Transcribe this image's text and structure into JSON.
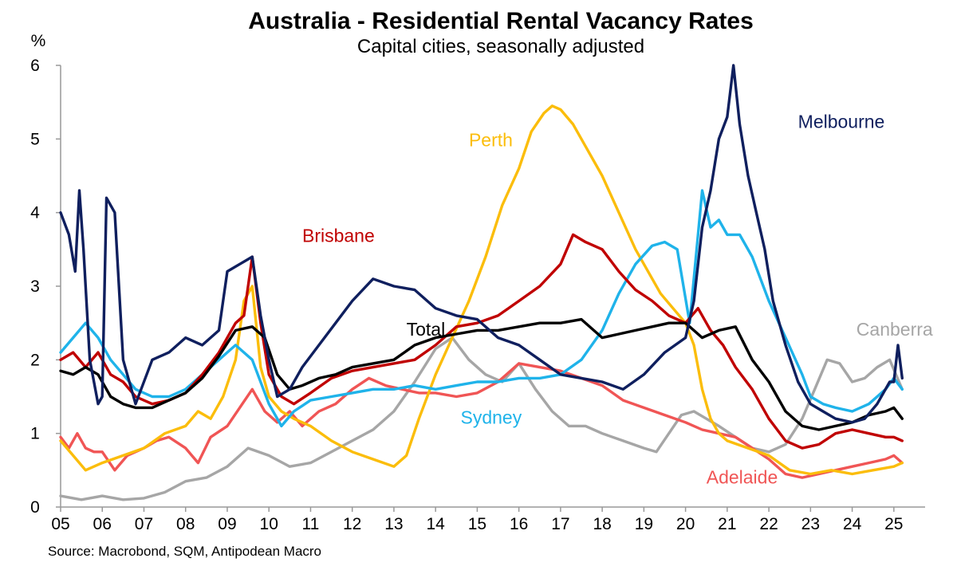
{
  "chart_data": {
    "type": "line",
    "title": "Australia - Residential Rental Vacancy Rates",
    "subtitle": "Capital cities, seasonally adjusted",
    "ylabel": "%",
    "source": "Source: Macrobond, SQM, Antipodean Macro",
    "xlim": [
      2005,
      2025.75
    ],
    "ylim": [
      0,
      6
    ],
    "yticks": [
      0,
      1,
      2,
      3,
      4,
      5,
      6
    ],
    "xticks": [
      2005,
      2006,
      2007,
      2008,
      2009,
      2010,
      2011,
      2012,
      2013,
      2014,
      2015,
      2016,
      2017,
      2018,
      2019,
      2020,
      2021,
      2022,
      2023,
      2024,
      2025
    ],
    "xtick_labels": [
      "05",
      "06",
      "07",
      "08",
      "09",
      "10",
      "11",
      "12",
      "13",
      "14",
      "15",
      "16",
      "17",
      "18",
      "19",
      "20",
      "21",
      "22",
      "23",
      "24",
      "25"
    ],
    "grid": false,
    "series": [
      {
        "name": "Canberra",
        "color": "#a6a6a6",
        "x": [
          2005.0,
          2005.5,
          2006.0,
          2006.5,
          2007.0,
          2007.5,
          2008.0,
          2008.5,
          2009.0,
          2009.5,
          2010.0,
          2010.5,
          2011.0,
          2011.5,
          2012.0,
          2012.5,
          2013.0,
          2013.5,
          2014.0,
          2014.4,
          2014.8,
          2015.2,
          2015.6,
          2016.0,
          2016.4,
          2016.8,
          2017.2,
          2017.6,
          2018.0,
          2018.5,
          2019.0,
          2019.3,
          2019.6,
          2019.9,
          2020.2,
          2020.5,
          2020.8,
          2021.2,
          2021.6,
          2022.0,
          2022.4,
          2022.8,
          2023.1,
          2023.4,
          2023.7,
          2024.0,
          2024.3,
          2024.6,
          2024.9,
          2025.2
        ],
        "y": [
          0.15,
          0.1,
          0.15,
          0.1,
          0.12,
          0.2,
          0.35,
          0.4,
          0.55,
          0.8,
          0.7,
          0.55,
          0.6,
          0.75,
          0.9,
          1.05,
          1.3,
          1.7,
          2.15,
          2.3,
          2.0,
          1.8,
          1.7,
          1.95,
          1.6,
          1.3,
          1.1,
          1.1,
          1.0,
          0.9,
          0.8,
          0.75,
          1.0,
          1.25,
          1.3,
          1.2,
          1.1,
          0.95,
          0.8,
          0.75,
          0.85,
          1.2,
          1.6,
          2.0,
          1.95,
          1.7,
          1.75,
          1.9,
          2.0,
          1.6
        ]
      },
      {
        "name": "Adelaide",
        "color": "#f05555",
        "x": [
          2005.0,
          2005.2,
          2005.4,
          2005.6,
          2005.8,
          2006.0,
          2006.3,
          2006.6,
          2007.0,
          2007.3,
          2007.6,
          2008.0,
          2008.3,
          2008.6,
          2009.0,
          2009.3,
          2009.6,
          2009.9,
          2010.2,
          2010.5,
          2010.8,
          2011.2,
          2011.6,
          2012.0,
          2012.4,
          2012.8,
          2013.2,
          2013.6,
          2014.0,
          2014.5,
          2015.0,
          2015.5,
          2016.0,
          2016.5,
          2017.0,
          2017.5,
          2018.0,
          2018.5,
          2019.0,
          2019.5,
          2020.0,
          2020.4,
          2020.8,
          2021.2,
          2021.6,
          2022.0,
          2022.4,
          2022.8,
          2023.2,
          2023.6,
          2024.0,
          2024.4,
          2024.8,
          2025.0,
          2025.2
        ],
        "y": [
          0.95,
          0.8,
          1.0,
          0.8,
          0.75,
          0.75,
          0.5,
          0.7,
          0.8,
          0.9,
          0.95,
          0.8,
          0.6,
          0.95,
          1.1,
          1.35,
          1.6,
          1.3,
          1.15,
          1.3,
          1.1,
          1.3,
          1.4,
          1.6,
          1.75,
          1.65,
          1.6,
          1.55,
          1.55,
          1.5,
          1.55,
          1.7,
          1.95,
          1.9,
          1.85,
          1.75,
          1.65,
          1.45,
          1.35,
          1.25,
          1.15,
          1.05,
          1.0,
          0.95,
          0.8,
          0.65,
          0.45,
          0.4,
          0.45,
          0.5,
          0.55,
          0.6,
          0.65,
          0.7,
          0.6
        ]
      },
      {
        "name": "Perth",
        "color": "#fbbd0b",
        "x": [
          2005.0,
          2005.3,
          2005.6,
          2006.0,
          2006.5,
          2007.0,
          2007.5,
          2008.0,
          2008.3,
          2008.6,
          2008.9,
          2009.2,
          2009.4,
          2009.6,
          2009.8,
          2010.0,
          2010.3,
          2010.6,
          2011.0,
          2011.5,
          2012.0,
          2012.5,
          2013.0,
          2013.3,
          2013.6,
          2014.0,
          2014.4,
          2014.8,
          2015.2,
          2015.6,
          2016.0,
          2016.3,
          2016.6,
          2016.8,
          2017.0,
          2017.3,
          2017.6,
          2018.0,
          2018.4,
          2018.8,
          2019.0,
          2019.4,
          2019.7,
          2020.0,
          2020.2,
          2020.4,
          2020.6,
          2020.8,
          2021.0,
          2021.5,
          2022.0,
          2022.5,
          2023.0,
          2023.5,
          2024.0,
          2024.5,
          2025.0,
          2025.2
        ],
        "y": [
          0.9,
          0.7,
          0.5,
          0.6,
          0.7,
          0.8,
          1.0,
          1.1,
          1.3,
          1.2,
          1.5,
          2.0,
          2.8,
          3.0,
          1.9,
          1.5,
          1.3,
          1.2,
          1.1,
          0.9,
          0.75,
          0.65,
          0.55,
          0.7,
          1.2,
          1.8,
          2.3,
          2.8,
          3.4,
          4.1,
          4.6,
          5.1,
          5.35,
          5.45,
          5.4,
          5.2,
          4.9,
          4.5,
          4.0,
          3.5,
          3.3,
          2.9,
          2.7,
          2.5,
          2.2,
          1.6,
          1.2,
          1.0,
          0.9,
          0.8,
          0.7,
          0.5,
          0.45,
          0.5,
          0.45,
          0.5,
          0.55,
          0.6
        ]
      },
      {
        "name": "Sydney",
        "color": "#1fb3ea",
        "x": [
          2005.0,
          2005.3,
          2005.6,
          2005.9,
          2006.2,
          2006.5,
          2006.8,
          2007.2,
          2007.6,
          2008.0,
          2008.4,
          2008.8,
          2009.2,
          2009.6,
          2010.0,
          2010.3,
          2010.6,
          2011.0,
          2011.5,
          2012.0,
          2012.5,
          2013.0,
          2013.5,
          2014.0,
          2014.5,
          2015.0,
          2015.5,
          2016.0,
          2016.5,
          2017.0,
          2017.5,
          2018.0,
          2018.4,
          2018.8,
          2019.2,
          2019.5,
          2019.8,
          2020.1,
          2020.4,
          2020.6,
          2020.8,
          2021.0,
          2021.3,
          2021.6,
          2022.0,
          2022.4,
          2022.8,
          2023.0,
          2023.3,
          2023.6,
          2024.0,
          2024.4,
          2024.8,
          2025.0,
          2025.2
        ],
        "y": [
          2.1,
          2.3,
          2.5,
          2.3,
          2.0,
          1.8,
          1.6,
          1.5,
          1.5,
          1.6,
          1.8,
          2.0,
          2.2,
          2.0,
          1.4,
          1.1,
          1.3,
          1.45,
          1.5,
          1.55,
          1.6,
          1.6,
          1.65,
          1.6,
          1.65,
          1.7,
          1.7,
          1.75,
          1.75,
          1.8,
          2.0,
          2.4,
          2.9,
          3.3,
          3.55,
          3.6,
          3.5,
          2.5,
          4.3,
          3.8,
          3.9,
          3.7,
          3.7,
          3.4,
          2.8,
          2.3,
          1.8,
          1.5,
          1.4,
          1.35,
          1.3,
          1.4,
          1.6,
          1.75,
          1.6
        ]
      },
      {
        "name": "Brisbane",
        "color": "#c00000",
        "x": [
          2005.0,
          2005.3,
          2005.6,
          2005.9,
          2006.2,
          2006.5,
          2006.8,
          2007.2,
          2007.6,
          2008.0,
          2008.4,
          2008.8,
          2009.2,
          2009.4,
          2009.6,
          2009.8,
          2010.0,
          2010.3,
          2010.6,
          2011.0,
          2011.5,
          2012.0,
          2012.5,
          2013.0,
          2013.5,
          2014.0,
          2014.5,
          2015.0,
          2015.5,
          2016.0,
          2016.5,
          2017.0,
          2017.3,
          2017.6,
          2018.0,
          2018.4,
          2018.8,
          2019.2,
          2019.6,
          2020.0,
          2020.3,
          2020.6,
          2020.9,
          2021.2,
          2021.6,
          2022.0,
          2022.4,
          2022.8,
          2023.2,
          2023.6,
          2024.0,
          2024.4,
          2024.8,
          2025.0,
          2025.2
        ],
        "y": [
          2.0,
          2.1,
          1.9,
          2.1,
          1.8,
          1.7,
          1.5,
          1.4,
          1.45,
          1.55,
          1.8,
          2.1,
          2.5,
          2.6,
          3.4,
          2.5,
          1.8,
          1.5,
          1.4,
          1.55,
          1.75,
          1.85,
          1.9,
          1.95,
          2.0,
          2.2,
          2.45,
          2.5,
          2.6,
          2.8,
          3.0,
          3.3,
          3.7,
          3.6,
          3.5,
          3.2,
          2.95,
          2.8,
          2.6,
          2.5,
          2.7,
          2.4,
          2.2,
          1.9,
          1.6,
          1.2,
          0.9,
          0.8,
          0.85,
          1.0,
          1.05,
          1.0,
          0.95,
          0.95,
          0.9
        ]
      },
      {
        "name": "Total",
        "color": "#000000",
        "x": [
          2005.0,
          2005.3,
          2005.6,
          2005.9,
          2006.2,
          2006.5,
          2006.8,
          2007.2,
          2007.6,
          2008.0,
          2008.4,
          2008.8,
          2009.2,
          2009.6,
          2009.9,
          2010.2,
          2010.5,
          2010.8,
          2011.2,
          2011.6,
          2012.0,
          2012.5,
          2013.0,
          2013.5,
          2014.0,
          2014.5,
          2015.0,
          2015.5,
          2016.0,
          2016.5,
          2017.0,
          2017.5,
          2018.0,
          2018.4,
          2018.8,
          2019.2,
          2019.6,
          2020.0,
          2020.4,
          2020.8,
          2021.2,
          2021.6,
          2022.0,
          2022.4,
          2022.8,
          2023.2,
          2023.6,
          2024.0,
          2024.4,
          2024.8,
          2025.0,
          2025.2
        ],
        "y": [
          1.85,
          1.8,
          1.9,
          1.8,
          1.5,
          1.4,
          1.35,
          1.35,
          1.45,
          1.55,
          1.75,
          2.05,
          2.4,
          2.45,
          2.3,
          1.8,
          1.6,
          1.65,
          1.75,
          1.8,
          1.9,
          1.95,
          2.0,
          2.2,
          2.3,
          2.35,
          2.4,
          2.4,
          2.45,
          2.5,
          2.5,
          2.55,
          2.3,
          2.35,
          2.4,
          2.45,
          2.5,
          2.5,
          2.3,
          2.4,
          2.45,
          2.0,
          1.7,
          1.3,
          1.1,
          1.05,
          1.1,
          1.15,
          1.25,
          1.3,
          1.35,
          1.2
        ]
      },
      {
        "name": "Melbourne",
        "color": "#0f1f5e",
        "x": [
          2005.0,
          2005.2,
          2005.35,
          2005.45,
          2005.55,
          2005.7,
          2005.9,
          2006.0,
          2006.1,
          2006.3,
          2006.5,
          2006.8,
          2007.2,
          2007.6,
          2008.0,
          2008.4,
          2008.8,
          2009.0,
          2009.3,
          2009.6,
          2009.8,
          2010.0,
          2010.2,
          2010.5,
          2010.8,
          2011.2,
          2011.6,
          2012.0,
          2012.5,
          2013.0,
          2013.5,
          2014.0,
          2014.5,
          2015.0,
          2015.5,
          2016.0,
          2016.5,
          2017.0,
          2017.5,
          2018.0,
          2018.5,
          2019.0,
          2019.5,
          2020.0,
          2020.2,
          2020.4,
          2020.6,
          2020.8,
          2021.0,
          2021.15,
          2021.3,
          2021.5,
          2021.7,
          2021.9,
          2022.1,
          2022.4,
          2022.7,
          2023.0,
          2023.3,
          2023.6,
          2024.0,
          2024.3,
          2024.6,
          2024.9,
          2025.0,
          2025.1,
          2025.2
        ],
        "y": [
          4.0,
          3.7,
          3.2,
          4.3,
          3.5,
          2.0,
          1.4,
          1.5,
          4.2,
          4.0,
          2.0,
          1.4,
          2.0,
          2.1,
          2.3,
          2.2,
          2.4,
          3.2,
          3.3,
          3.4,
          2.6,
          2.0,
          1.5,
          1.6,
          1.9,
          2.2,
          2.5,
          2.8,
          3.1,
          3.0,
          2.95,
          2.7,
          2.6,
          2.55,
          2.3,
          2.2,
          2.0,
          1.8,
          1.75,
          1.7,
          1.6,
          1.8,
          2.1,
          2.3,
          2.8,
          3.8,
          4.3,
          5.0,
          5.3,
          6.0,
          5.2,
          4.5,
          4.0,
          3.5,
          2.8,
          2.2,
          1.7,
          1.4,
          1.3,
          1.2,
          1.15,
          1.2,
          1.4,
          1.7,
          1.7,
          2.2,
          1.75
        ]
      }
    ],
    "labels": [
      {
        "series": "Melbourne",
        "text": "Melbourne",
        "x": 2022.7,
        "y": 5.15
      },
      {
        "series": "Perth",
        "text": "Perth",
        "x": 2014.8,
        "y": 4.9
      },
      {
        "series": "Brisbane",
        "text": "Brisbane",
        "x": 2010.8,
        "y": 3.6
      },
      {
        "series": "Total",
        "text": "Total",
        "x": 2013.3,
        "y": 2.33
      },
      {
        "series": "Canberra",
        "text": "Canberra",
        "x": 2024.1,
        "y": 2.33
      },
      {
        "series": "Sydney",
        "text": "Sydney",
        "x": 2014.6,
        "y": 1.13
      },
      {
        "series": "Adelaide",
        "text": "Adelaide",
        "x": 2020.5,
        "y": 0.32
      }
    ]
  }
}
